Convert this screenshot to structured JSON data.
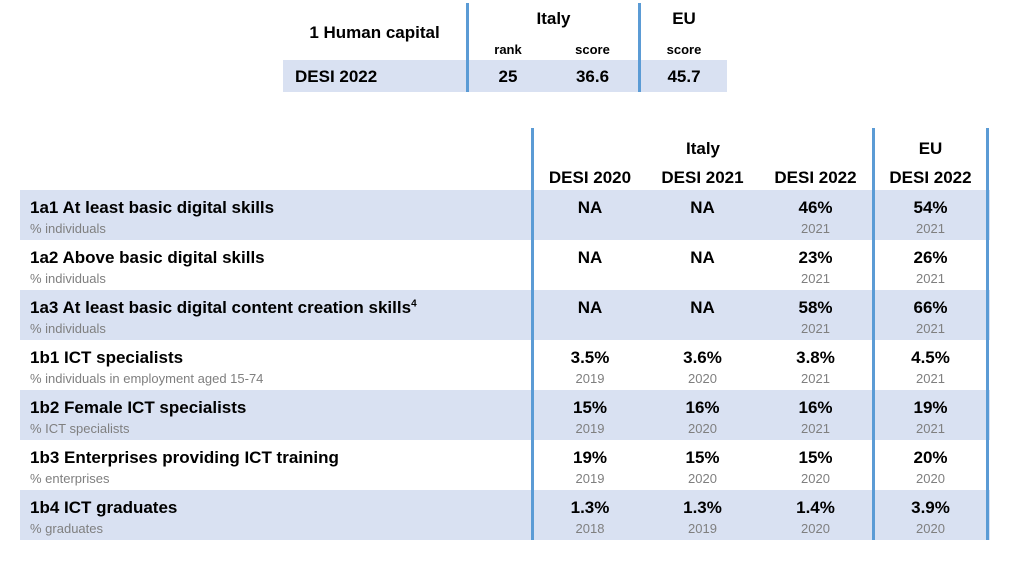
{
  "summary": {
    "title": "1 Human capital",
    "italy_label": "Italy",
    "eu_label": "EU",
    "rank_label": "rank",
    "score_label": "score",
    "eu_score_label": "score",
    "row_label": "DESI 2022",
    "italy_rank": "25",
    "italy_score": "36.6",
    "eu_score": "45.7"
  },
  "table": {
    "italy_label": "Italy",
    "eu_label": "EU",
    "columns": [
      "DESI 2020",
      "DESI 2021",
      "DESI 2022",
      "DESI 2022"
    ],
    "rows": [
      {
        "name": "1a1 At least basic digital skills",
        "sup": "",
        "unit": "% individuals",
        "values": [
          "NA",
          "NA",
          "46%",
          "54%"
        ],
        "years": [
          "",
          "",
          "2021",
          "2021"
        ]
      },
      {
        "name": "1a2 Above basic digital skills",
        "sup": "",
        "unit": "% individuals",
        "values": [
          "NA",
          "NA",
          "23%",
          "26%"
        ],
        "years": [
          "",
          "",
          "2021",
          "2021"
        ]
      },
      {
        "name": "1a3 At least basic digital content creation skills",
        "sup": "4",
        "unit": "% individuals",
        "values": [
          "NA",
          "NA",
          "58%",
          "66%"
        ],
        "years": [
          "",
          "",
          "2021",
          "2021"
        ]
      },
      {
        "name": "1b1 ICT specialists",
        "sup": "",
        "unit": "% individuals in employment aged 15-74",
        "values": [
          "3.5%",
          "3.6%",
          "3.8%",
          "4.5%"
        ],
        "years": [
          "2019",
          "2020",
          "2021",
          "2021"
        ]
      },
      {
        "name": "1b2 Female ICT specialists",
        "sup": "",
        "unit": "% ICT specialists",
        "values": [
          "15%",
          "16%",
          "16%",
          "19%"
        ],
        "years": [
          "2019",
          "2020",
          "2021",
          "2021"
        ]
      },
      {
        "name": "1b3 Enterprises providing ICT training",
        "sup": "",
        "unit": "% enterprises",
        "values": [
          "19%",
          "15%",
          "15%",
          "20%"
        ],
        "years": [
          "2019",
          "2020",
          "2020",
          "2020"
        ]
      },
      {
        "name": "1b4 ICT graduates",
        "sup": "",
        "unit": "% graduates",
        "values": [
          "1.3%",
          "1.3%",
          "1.4%",
          "3.9%"
        ],
        "years": [
          "2018",
          "2019",
          "2020",
          "2020"
        ]
      }
    ]
  }
}
